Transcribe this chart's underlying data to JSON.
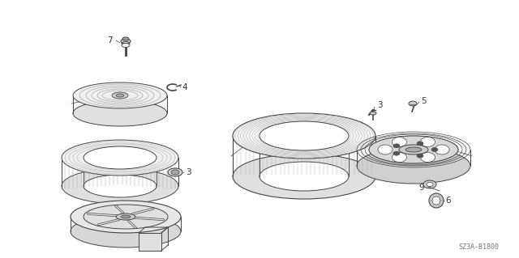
{
  "bg_color": "#ffffff",
  "line_color": "#444444",
  "label_color": "#333333",
  "diagram_code": "SZ3A-B1800",
  "figsize": [
    6.4,
    3.19
  ],
  "dpi": 100
}
